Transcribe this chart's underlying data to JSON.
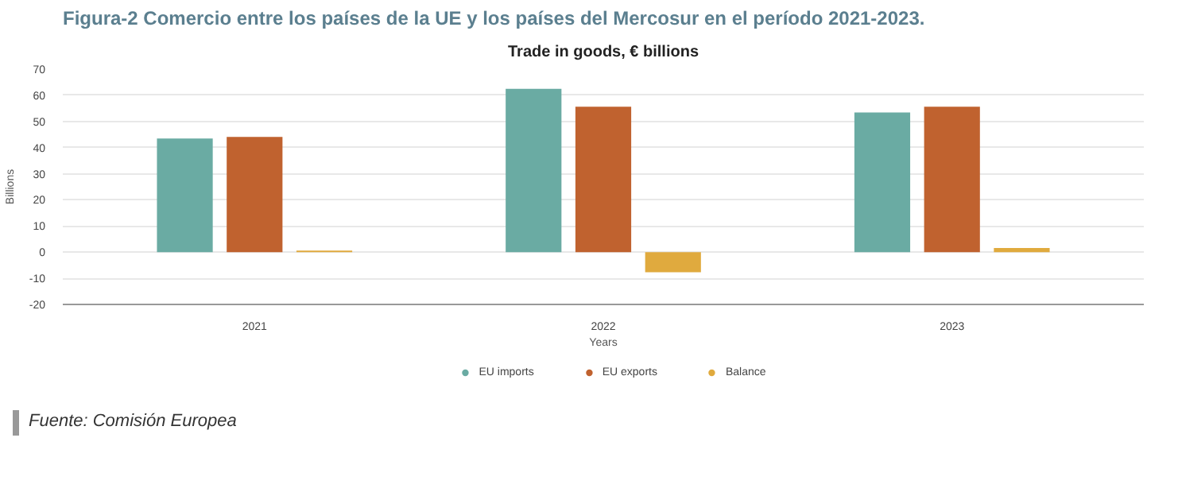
{
  "chart_data": {
    "type": "bar",
    "title": "Figura-2 Comercio entre los países de la UE y los países del Mercosur en el período 2021-2023.",
    "subtitle": "Trade in goods, € billions",
    "xlabel": "Years",
    "ylabel": "Billions",
    "categories": [
      "2021",
      "2022",
      "2023"
    ],
    "series": [
      {
        "name": "EU imports",
        "color": "#6aaba3",
        "values": [
          43.5,
          62.5,
          53.4
        ]
      },
      {
        "name": "EU exports",
        "color": "#c0622f",
        "values": [
          44.1,
          55.6,
          55.6
        ]
      },
      {
        "name": "Balance",
        "color": "#e0aa3e",
        "values": [
          0.6,
          -7.7,
          1.6
        ]
      }
    ],
    "ylim": [
      -20,
      70
    ],
    "yticks": [
      -20,
      -10,
      0,
      10,
      20,
      30,
      40,
      50,
      60,
      70
    ],
    "grid": "y",
    "legend": "bottom",
    "annotations": [
      "Fuente: Comisión Europea"
    ]
  }
}
